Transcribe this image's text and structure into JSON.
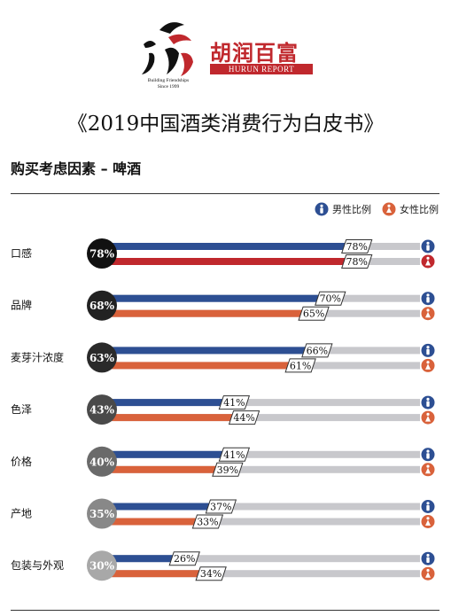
{
  "header": {
    "tagline_line1": "Building Friendships",
    "tagline_line2": "Since 1999",
    "brand_cn": "胡润百富",
    "brand_en": "HURUN REPORT",
    "title": "《2019中国酒类消费行为白皮书》",
    "subtitle": "购买考虑因素 – 啤酒"
  },
  "colors": {
    "male": "#2d4f93",
    "female_top": "#c0282d",
    "female": "#d9623b",
    "track": "#c8c8cc"
  },
  "chart_data": {
    "type": "bar",
    "orientation": "horizontal",
    "categories": [
      "口感",
      "品牌",
      "麦芽汁浓度",
      "色泽",
      "价格",
      "产地",
      "包装与外观"
    ],
    "overall": [
      "78%",
      "68%",
      "63%",
      "43%",
      "40%",
      "35%",
      "30%"
    ],
    "series": [
      {
        "name": "男性比例",
        "values": [
          78,
          70,
          66,
          41,
          41,
          37,
          26
        ]
      },
      {
        "name": "女性比例",
        "values": [
          78,
          65,
          61,
          44,
          39,
          33,
          34
        ]
      }
    ],
    "xlim": [
      0,
      100
    ],
    "legend": "top-right"
  }
}
